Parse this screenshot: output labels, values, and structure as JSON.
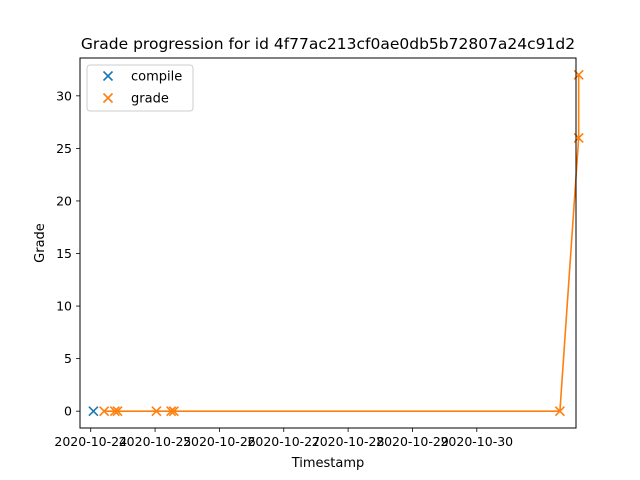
{
  "chart_data": {
    "type": "scatter",
    "title": "Grade progression for id 4f77ac213cf0ae0db5b72807a24c91d2",
    "xlabel": "Timestamp",
    "ylabel": "Grade",
    "x_type": "date",
    "xlim": [
      "2020-10-23T20:00",
      "2020-10-31T13:00"
    ],
    "ylim": [
      -1.6,
      33.6
    ],
    "x_ticks": [
      {
        "value": "2020-10-24T00:00",
        "label": "2020-10-24"
      },
      {
        "value": "2020-10-25T00:00",
        "label": "2020-10-25"
      },
      {
        "value": "2020-10-26T00:00",
        "label": "2020-10-26"
      },
      {
        "value": "2020-10-27T00:00",
        "label": "2020-10-27"
      },
      {
        "value": "2020-10-28T00:00",
        "label": "2020-10-28"
      },
      {
        "value": "2020-10-29T00:00",
        "label": "2020-10-29"
      },
      {
        "value": "2020-10-30T00:00",
        "label": "2020-10-30"
      }
    ],
    "y_ticks": [
      {
        "value": 0,
        "label": "0"
      },
      {
        "value": 5,
        "label": "5"
      },
      {
        "value": 10,
        "label": "10"
      },
      {
        "value": 15,
        "label": "15"
      },
      {
        "value": 20,
        "label": "20"
      },
      {
        "value": 25,
        "label": "25"
      },
      {
        "value": 30,
        "label": "30"
      }
    ],
    "grid": false,
    "legend_position": "upper left",
    "series": [
      {
        "name": "compile",
        "color": "#1f77b4",
        "marker": "x",
        "line": false,
        "points": [
          {
            "x": "2020-10-24T01:00",
            "y": 0
          }
        ]
      },
      {
        "name": "grade",
        "color": "#ff7f0e",
        "marker": "x",
        "line": true,
        "points": [
          {
            "x": "2020-10-24T05:00",
            "y": 0
          },
          {
            "x": "2020-10-24T09:00",
            "y": 0
          },
          {
            "x": "2020-10-24T10:00",
            "y": 0
          },
          {
            "x": "2020-10-25T00:30",
            "y": 0
          },
          {
            "x": "2020-10-25T06:00",
            "y": 0
          },
          {
            "x": "2020-10-25T07:00",
            "y": 0
          },
          {
            "x": "2020-10-31T07:00",
            "y": 0
          },
          {
            "x": "2020-10-31T14:00",
            "y": 26
          },
          {
            "x": "2020-10-31T14:00",
            "y": 32
          }
        ]
      }
    ]
  }
}
